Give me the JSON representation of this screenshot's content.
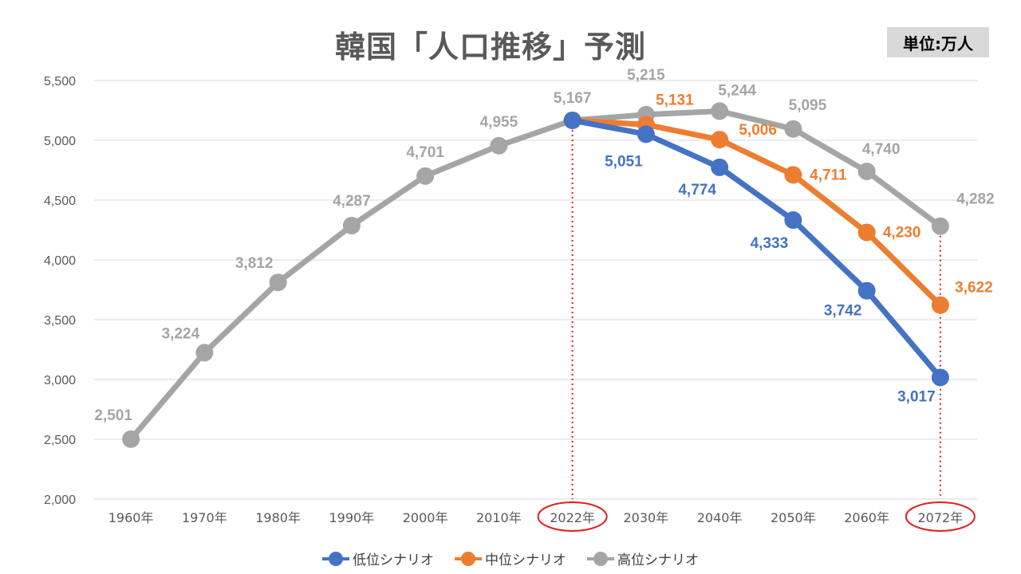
{
  "title": "韓国「人口推移」予測",
  "unit_label": "単位:万人",
  "chart_data": {
    "type": "line",
    "title": "韓国「人口推移」予測",
    "ylim": [
      2000,
      5500
    ],
    "yticks": [
      "2,000",
      "2,500",
      "3,000",
      "3,500",
      "4,000",
      "4,500",
      "5,000",
      "5,500"
    ],
    "ytick_values": [
      2000,
      2500,
      3000,
      3500,
      4000,
      4500,
      5000,
      5500
    ],
    "categories": [
      "1960年",
      "1970年",
      "1980年",
      "1990年",
      "2000年",
      "2010年",
      "2022年",
      "2030年",
      "2040年",
      "2050年",
      "2060年",
      "2072年"
    ],
    "highlighted_categories": [
      "2022年",
      "2072年"
    ],
    "grid": true,
    "legend_position": "bottom",
    "series": [
      {
        "name": "低位シナリオ",
        "color": "#4472c4",
        "values": [
          null,
          null,
          null,
          null,
          null,
          null,
          5167,
          5051,
          4774,
          4333,
          3742,
          3017
        ],
        "labels": [
          null,
          null,
          null,
          null,
          null,
          null,
          null,
          "5,051",
          "4,774",
          "4,333",
          "3,742",
          "3,017"
        ]
      },
      {
        "name": "中位シナリオ",
        "color": "#ed7d31",
        "values": [
          null,
          null,
          null,
          null,
          null,
          null,
          5167,
          5131,
          5006,
          4711,
          4230,
          3622
        ],
        "labels": [
          null,
          null,
          null,
          null,
          null,
          null,
          null,
          "5,131",
          "5,006",
          "4,711",
          "4,230",
          "3,622"
        ]
      },
      {
        "name": "高位シナリオ",
        "color": "#a5a5a5",
        "values": [
          2501,
          3224,
          3812,
          4287,
          4701,
          4955,
          5167,
          5215,
          5244,
          5095,
          4740,
          4282
        ],
        "labels": [
          "2,501",
          "3,224",
          "3,812",
          "4,287",
          "4,701",
          "4,955",
          "5,167",
          "5,215",
          "5,244",
          "5,095",
          "4,740",
          "4,282"
        ]
      }
    ]
  }
}
